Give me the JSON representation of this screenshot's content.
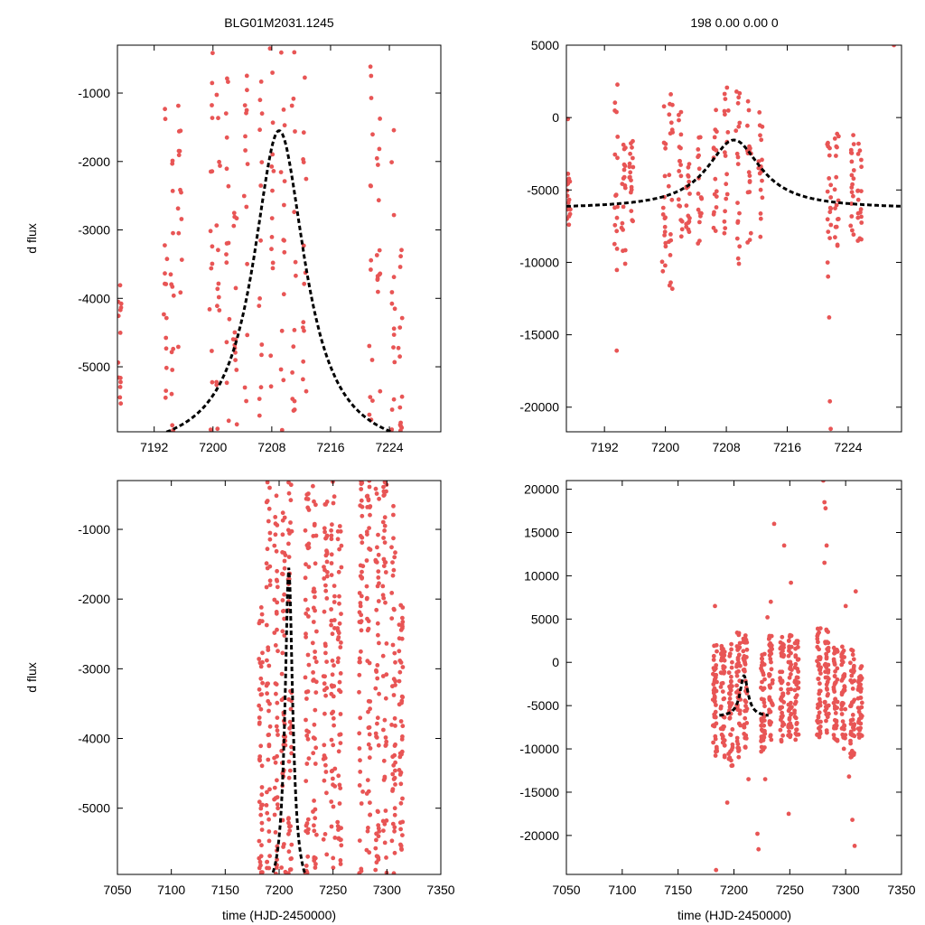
{
  "colors": {
    "points": "#e85555",
    "model": "#000000"
  },
  "chart_data": [
    {
      "type": "scatter",
      "panel": "top-left",
      "title": "BLG01M2031.1245",
      "xlabel": "",
      "ylabel": "d flux",
      "xlim": [
        7187,
        7231
      ],
      "ylim": [
        -5950,
        -300
      ],
      "xticks": [
        7192,
        7200,
        7208,
        7216,
        7224
      ],
      "yticks": [
        -1000,
        -2000,
        -3000,
        -4000,
        -5000
      ],
      "model": {
        "t0": 7209,
        "peak": -1550,
        "base": -6300,
        "tE": 4.3
      },
      "point_columns": [
        {
          "x": 7187.3,
          "ymin": -5950,
          "ymax": -3800
        },
        {
          "x": 7193.5,
          "ymin": -5950,
          "ymax": -550
        },
        {
          "x": 7194.5,
          "ymin": -5950,
          "ymax": -1800
        },
        {
          "x": 7195.5,
          "ymin": -5950,
          "ymax": -850
        },
        {
          "x": 7199.8,
          "ymin": -5950,
          "ymax": -400
        },
        {
          "x": 7200.7,
          "ymin": -5950,
          "ymax": -400
        },
        {
          "x": 7202.0,
          "ymin": -5950,
          "ymax": -700
        },
        {
          "x": 7203.0,
          "ymin": -5950,
          "ymax": -2600
        },
        {
          "x": 7204.5,
          "ymin": -5950,
          "ymax": -700
        },
        {
          "x": 7206.5,
          "ymin": -5950,
          "ymax": -300
        },
        {
          "x": 7208.0,
          "ymin": -5950,
          "ymax": -300
        },
        {
          "x": 7209.5,
          "ymin": -5950,
          "ymax": -300
        },
        {
          "x": 7211.0,
          "ymin": -5950,
          "ymax": -300
        },
        {
          "x": 7212.5,
          "ymin": -5950,
          "ymax": -300
        },
        {
          "x": 7221.5,
          "ymin": -5950,
          "ymax": -400
        },
        {
          "x": 7222.5,
          "ymin": -5950,
          "ymax": -1200
        },
        {
          "x": 7224.5,
          "ymin": -5950,
          "ymax": -1200
        },
        {
          "x": 7225.5,
          "ymin": -5950,
          "ymax": -2700
        }
      ],
      "point_density": 14
    },
    {
      "type": "scatter",
      "panel": "top-right",
      "title": "198  0.00  0.00  0",
      "xlabel": "",
      "ylabel": "",
      "xlim": [
        7187,
        7231
      ],
      "ylim": [
        -21700,
        5000
      ],
      "xticks": [
        7192,
        7200,
        7208,
        7216,
        7224
      ],
      "yticks": [
        5000,
        0,
        -5000,
        -10000,
        -15000,
        -20000
      ],
      "model": {
        "t0": 7209,
        "peak": -1550,
        "base": -6300,
        "tE": 4.3
      },
      "point_columns": [
        {
          "x": 7187.3,
          "ymin": -7500,
          "ymax": -3800
        },
        {
          "x": 7193.5,
          "ymin": -10800,
          "ymax": 2300
        },
        {
          "x": 7194.5,
          "ymin": -10200,
          "ymax": -1800
        },
        {
          "x": 7195.5,
          "ymin": -7500,
          "ymax": -1100
        },
        {
          "x": 7199.8,
          "ymin": -11700,
          "ymax": 1200
        },
        {
          "x": 7200.7,
          "ymin": -12000,
          "ymax": 3300
        },
        {
          "x": 7202.0,
          "ymin": -8800,
          "ymax": 1000
        },
        {
          "x": 7203.0,
          "ymin": -7900,
          "ymax": -2600
        },
        {
          "x": 7204.5,
          "ymin": -8900,
          "ymax": -500
        },
        {
          "x": 7206.5,
          "ymin": -8000,
          "ymax": 900
        },
        {
          "x": 7208.0,
          "ymin": -8500,
          "ymax": 3000
        },
        {
          "x": 7209.5,
          "ymin": -10800,
          "ymax": 2200
        },
        {
          "x": 7211.0,
          "ymin": -9000,
          "ymax": 1400
        },
        {
          "x": 7212.5,
          "ymin": -9000,
          "ymax": 900
        },
        {
          "x": 7221.5,
          "ymin": -11000,
          "ymax": -200
        },
        {
          "x": 7222.5,
          "ymin": -9500,
          "ymax": -800
        },
        {
          "x": 7224.5,
          "ymin": -8500,
          "ymax": -100
        },
        {
          "x": 7225.5,
          "ymin": -9000,
          "ymax": -1500
        }
      ],
      "outliers": [
        {
          "x": 7193.6,
          "y": -16100
        },
        {
          "x": 7221.5,
          "y": -13800
        },
        {
          "x": 7221.6,
          "y": -19600
        },
        {
          "x": 7221.7,
          "y": -21500
        },
        {
          "x": 7230.0,
          "y": 5000
        },
        {
          "x": 7187.2,
          "y": -100
        }
      ],
      "point_density": 18
    },
    {
      "type": "scatter",
      "panel": "bottom-left",
      "title": "",
      "xlabel": "time (HJD-2450000)",
      "ylabel": "d flux",
      "xlim": [
        7050,
        7350
      ],
      "ylim": [
        -5950,
        -300
      ],
      "xticks": [
        7050,
        7100,
        7150,
        7200,
        7250,
        7300,
        7350
      ],
      "yticks": [
        -1000,
        -2000,
        -3000,
        -4000,
        -5000
      ],
      "model": {
        "t0": 7209,
        "peak": -1550,
        "base": -6300,
        "tE": 4.3
      },
      "point_columns": [
        {
          "x": 7183,
          "ymin": -5950,
          "ymax": -2000
        },
        {
          "x": 7190,
          "ymin": -5950,
          "ymax": -300
        },
        {
          "x": 7197,
          "ymin": -5950,
          "ymax": -300
        },
        {
          "x": 7204,
          "ymin": -5950,
          "ymax": -300
        },
        {
          "x": 7210,
          "ymin": -5950,
          "ymax": -300
        },
        {
          "x": 7226,
          "ymin": -5950,
          "ymax": -300
        },
        {
          "x": 7233,
          "ymin": -5950,
          "ymax": -300
        },
        {
          "x": 7243,
          "ymin": -5950,
          "ymax": -300
        },
        {
          "x": 7250,
          "ymin": -5950,
          "ymax": -300
        },
        {
          "x": 7256,
          "ymin": -5950,
          "ymax": -300
        },
        {
          "x": 7276,
          "ymin": -5950,
          "ymax": -300
        },
        {
          "x": 7283,
          "ymin": -5950,
          "ymax": -300
        },
        {
          "x": 7291,
          "ymin": -5950,
          "ymax": -300
        },
        {
          "x": 7298,
          "ymin": -5950,
          "ymax": -300
        },
        {
          "x": 7306,
          "ymin": -5950,
          "ymax": -500
        },
        {
          "x": 7313,
          "ymin": -5950,
          "ymax": -2000
        }
      ],
      "point_density": 45
    },
    {
      "type": "scatter",
      "panel": "bottom-right",
      "title": "",
      "xlabel": "time (HJD-2450000)",
      "ylabel": "",
      "xlim": [
        7050,
        7350
      ],
      "ylim": [
        -24500,
        21000
      ],
      "xticks": [
        7050,
        7100,
        7150,
        7200,
        7250,
        7300,
        7350
      ],
      "yticks": [
        20000,
        15000,
        10000,
        5000,
        0,
        -5000,
        -10000,
        -15000,
        -20000
      ],
      "model": {
        "t0": 7209,
        "peak": -1550,
        "base": -6300,
        "tE": 4.3,
        "xrange": [
          7187,
          7231
        ]
      },
      "point_columns": [
        {
          "x": 7183,
          "ymin": -11000,
          "ymax": 2500
        },
        {
          "x": 7190,
          "ymin": -11000,
          "ymax": 2000
        },
        {
          "x": 7197,
          "ymin": -12000,
          "ymax": 2500
        },
        {
          "x": 7204,
          "ymin": -11000,
          "ymax": 3500
        },
        {
          "x": 7210,
          "ymin": -10000,
          "ymax": 3500
        },
        {
          "x": 7226,
          "ymin": -10500,
          "ymax": 1000
        },
        {
          "x": 7233,
          "ymin": -9000,
          "ymax": 3500
        },
        {
          "x": 7243,
          "ymin": -9500,
          "ymax": 3000
        },
        {
          "x": 7250,
          "ymin": -9000,
          "ymax": 3500
        },
        {
          "x": 7256,
          "ymin": -9000,
          "ymax": 2500
        },
        {
          "x": 7276,
          "ymin": -9000,
          "ymax": 4000
        },
        {
          "x": 7283,
          "ymin": -8500,
          "ymax": 4000
        },
        {
          "x": 7291,
          "ymin": -9500,
          "ymax": 2000
        },
        {
          "x": 7298,
          "ymin": -10000,
          "ymax": 2500
        },
        {
          "x": 7306,
          "ymin": -11000,
          "ymax": 1500
        },
        {
          "x": 7313,
          "ymin": -9000,
          "ymax": 0
        }
      ],
      "outliers": [
        {
          "x": 7183,
          "y": 6500
        },
        {
          "x": 7184,
          "y": -24000
        },
        {
          "x": 7194,
          "y": -16200
        },
        {
          "x": 7213,
          "y": -13500
        },
        {
          "x": 7221,
          "y": -19800
        },
        {
          "x": 7222,
          "y": -21600
        },
        {
          "x": 7228,
          "y": -13500
        },
        {
          "x": 7230,
          "y": 5200
        },
        {
          "x": 7233,
          "y": 7000
        },
        {
          "x": 7236,
          "y": 16000
        },
        {
          "x": 7245,
          "y": 13500
        },
        {
          "x": 7251,
          "y": 9200
        },
        {
          "x": 7249,
          "y": -17500
        },
        {
          "x": 7280,
          "y": 21000
        },
        {
          "x": 7281,
          "y": 18500
        },
        {
          "x": 7282,
          "y": 17800
        },
        {
          "x": 7283,
          "y": 13500
        },
        {
          "x": 7281,
          "y": 11500
        },
        {
          "x": 7300,
          "y": 6500
        },
        {
          "x": 7303,
          "y": -13200
        },
        {
          "x": 7306,
          "y": -18200
        },
        {
          "x": 7308,
          "y": -21200
        },
        {
          "x": 7309,
          "y": 8200
        }
      ],
      "point_density": 45
    }
  ]
}
